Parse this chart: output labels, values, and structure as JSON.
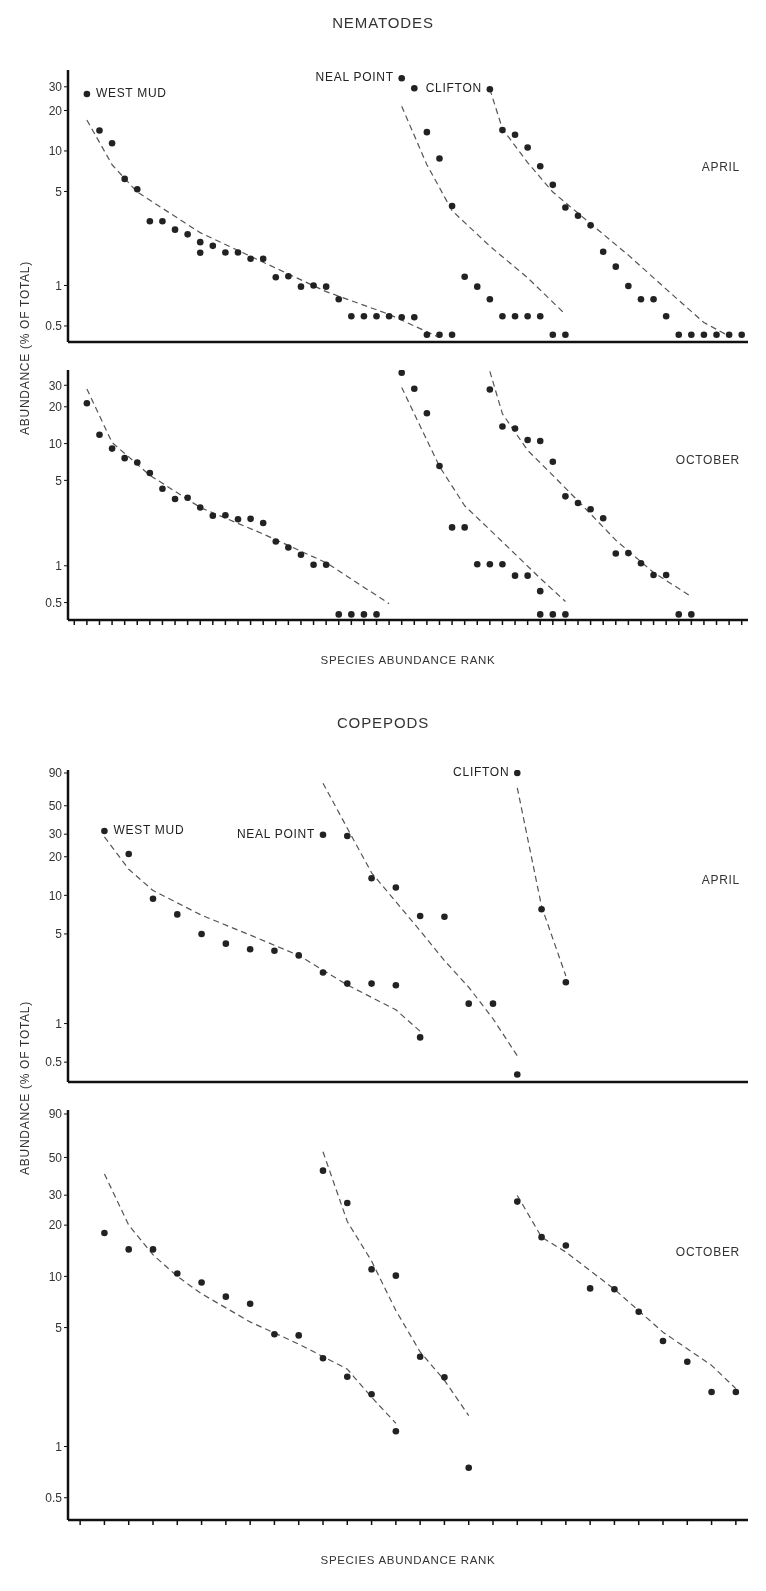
{
  "chart_data": [
    {
      "type": "scatter",
      "title": "NEMATODES",
      "ylabel": "ABUNDANCE (% OF TOTAL)",
      "annotations": [
        "APRIL"
      ],
      "log": true,
      "marker": "circle",
      "ylim": [
        0.38,
        40
      ],
      "yticks": [
        0.5,
        1,
        5,
        10,
        20,
        30
      ],
      "categories": [
        null,
        null,
        null,
        null,
        null,
        null,
        null,
        null,
        null,
        null,
        null,
        null,
        null,
        null,
        null,
        null,
        null,
        null,
        null,
        null,
        null,
        null,
        null,
        null,
        null,
        null,
        null,
        null,
        null,
        null,
        null,
        null,
        null,
        null,
        null,
        null,
        null,
        null,
        null,
        null,
        null,
        null,
        null,
        null,
        null,
        null,
        null,
        null,
        null,
        null,
        null,
        null,
        null,
        null
      ],
      "series": [
        {
          "name": "WEST MUD",
          "color": "#222222",
          "values": [
            null,
            26.5,
            14.2,
            11.4,
            6.2,
            5.2,
            3.0,
            3.0,
            2.6,
            2.4,
            2.1,
            1.97,
            1.76,
            1.76,
            1.58,
            1.58,
            1.15,
            1.17,
            0.98,
            1.0,
            0.98,
            0.79,
            0.59,
            0.59,
            0.59,
            0.59,
            0.58,
            0.58,
            0.43,
            0.43,
            0.43,
            null,
            null,
            null,
            null,
            null,
            null,
            null,
            null,
            null,
            null,
            null,
            null,
            null,
            null,
            null,
            null,
            null,
            null,
            null,
            null,
            null,
            null,
            null
          ]
        },
        {
          "color": "#222222",
          "values": [
            null,
            null,
            null,
            null,
            null,
            null,
            null,
            null,
            null,
            null,
            1.75,
            null,
            null,
            null,
            null,
            null,
            null,
            null,
            null,
            null,
            null,
            null,
            null,
            null,
            null,
            null,
            null,
            null,
            null,
            null,
            null,
            null,
            null,
            null,
            null,
            null,
            null,
            null,
            null,
            null,
            null,
            null,
            null,
            null,
            null,
            null,
            null,
            null,
            null,
            null,
            null,
            null,
            null,
            null
          ]
        },
        {
          "name": "NEAL POINT",
          "color": "#222222",
          "values": [
            null,
            null,
            null,
            null,
            null,
            null,
            null,
            null,
            null,
            null,
            null,
            null,
            null,
            null,
            null,
            null,
            null,
            null,
            null,
            null,
            null,
            null,
            null,
            null,
            null,
            null,
            34.7,
            29.3,
            13.8,
            8.8,
            3.9,
            1.16,
            0.98,
            0.79,
            0.59,
            0.59,
            0.59,
            0.59,
            0.43,
            0.43,
            null,
            null,
            null,
            null,
            null,
            null,
            null,
            null,
            null,
            null,
            null,
            null,
            null,
            null
          ]
        },
        {
          "name": "CLIFTON",
          "color": "#222222",
          "values": [
            null,
            null,
            null,
            null,
            null,
            null,
            null,
            null,
            null,
            null,
            null,
            null,
            null,
            null,
            null,
            null,
            null,
            null,
            null,
            null,
            null,
            null,
            null,
            null,
            null,
            null,
            null,
            null,
            null,
            null,
            null,
            null,
            null,
            28.8,
            14.3,
            13.2,
            10.6,
            7.7,
            5.6,
            3.8,
            3.3,
            2.8,
            1.78,
            1.38,
            0.99,
            0.79,
            0.79,
            0.59,
            0.43,
            0.43,
            0.43,
            0.43,
            0.43,
            0.43
          ]
        },
        {
          "type": "line",
          "marker": "none",
          "line_style": "dashed",
          "color": "#555555",
          "values": [
            null,
            17,
            null,
            7.9,
            null,
            4.95,
            null,
            null,
            null,
            null,
            2.47,
            null,
            null,
            null,
            null,
            1.49,
            null,
            null,
            null,
            null,
            0.9,
            null,
            null,
            null,
            null,
            0.61,
            null,
            null,
            null,
            0.41,
            null,
            null,
            null,
            null,
            null,
            null,
            null,
            null,
            null,
            null,
            null,
            null,
            null,
            null,
            null,
            null,
            null,
            null,
            null,
            null,
            null,
            null,
            null,
            null
          ]
        },
        {
          "type": "line",
          "marker": "none",
          "line_style": "dashed",
          "color": "#555555",
          "values": [
            null,
            null,
            null,
            null,
            null,
            null,
            null,
            null,
            null,
            null,
            null,
            null,
            null,
            null,
            null,
            null,
            null,
            null,
            null,
            null,
            null,
            null,
            null,
            null,
            null,
            null,
            21.5,
            null,
            7.9,
            null,
            3.6,
            null,
            null,
            1.96,
            null,
            null,
            1.14,
            null,
            null,
            0.61,
            null,
            null,
            null,
            null,
            null,
            null,
            null,
            null,
            null,
            null,
            null,
            null,
            null,
            null
          ]
        },
        {
          "type": "line",
          "marker": "none",
          "line_style": "dashed",
          "color": "#555555",
          "values": [
            null,
            null,
            null,
            null,
            null,
            null,
            null,
            null,
            null,
            null,
            null,
            null,
            null,
            null,
            null,
            null,
            null,
            null,
            null,
            null,
            null,
            null,
            null,
            null,
            null,
            null,
            null,
            null,
            null,
            null,
            null,
            null,
            null,
            28.8,
            14.6,
            null,
            8.2,
            null,
            4.95,
            null,
            null,
            2.88,
            null,
            null,
            1.68,
            null,
            null,
            0.94,
            null,
            null,
            0.53,
            null,
            0.42,
            null
          ]
        }
      ]
    },
    {
      "type": "scatter",
      "xlabel": "SPECIES ABUNDANCE RANK",
      "annotations": [
        "OCTOBER"
      ],
      "log": true,
      "marker": "circle",
      "ylim": [
        0.36,
        40
      ],
      "yticks": [
        0.5,
        1,
        5,
        10,
        20,
        30
      ],
      "categories": [
        null,
        null,
        null,
        null,
        null,
        null,
        null,
        null,
        null,
        null,
        null,
        null,
        null,
        null,
        null,
        null,
        null,
        null,
        null,
        null,
        null,
        null,
        null,
        null,
        null,
        null,
        null,
        null,
        null,
        null,
        null,
        null,
        null,
        null,
        null,
        null,
        null,
        null,
        null,
        null,
        null,
        null,
        null,
        null,
        null,
        null,
        null,
        null,
        null,
        null,
        null,
        null,
        null,
        null
      ],
      "series": [
        {
          "color": "#222222",
          "values": [
            null,
            21.4,
            11.8,
            9.1,
            7.6,
            7.0,
            5.75,
            4.27,
            3.52,
            3.6,
            3.0,
            2.57,
            2.59,
            2.4,
            2.42,
            2.24,
            1.58,
            1.41,
            1.23,
            1.02,
            1.02,
            0.4,
            0.4,
            0.4,
            0.4,
            null,
            null,
            null,
            null,
            null,
            null,
            null,
            null,
            null,
            null,
            null,
            null,
            null,
            null,
            null,
            null,
            null,
            null,
            null,
            null,
            null,
            null,
            null,
            null,
            null,
            null,
            null,
            null,
            null
          ]
        },
        {
          "color": "#222222",
          "values": [
            null,
            null,
            null,
            null,
            null,
            null,
            null,
            null,
            null,
            null,
            null,
            null,
            null,
            null,
            null,
            null,
            null,
            null,
            null,
            null,
            null,
            null,
            null,
            null,
            null,
            null,
            38,
            28.1,
            17.7,
            6.55,
            2.06,
            2.06,
            1.03,
            1.03,
            1.03,
            0.83,
            0.83,
            0.62,
            0.4,
            0.4,
            null,
            null,
            null,
            null,
            null,
            null,
            null,
            null,
            null,
            null,
            null,
            null,
            null,
            null
          ]
        },
        {
          "color": "#222222",
          "values": [
            null,
            null,
            null,
            null,
            null,
            null,
            null,
            null,
            null,
            null,
            null,
            null,
            null,
            null,
            null,
            null,
            null,
            null,
            null,
            null,
            null,
            null,
            null,
            null,
            null,
            null,
            null,
            null,
            null,
            null,
            null,
            null,
            null,
            null,
            null,
            null,
            null,
            0.4,
            null,
            null,
            null,
            null,
            null,
            null,
            null,
            null,
            null,
            null,
            null,
            null,
            null,
            null,
            null,
            null
          ]
        },
        {
          "color": "#222222",
          "values": [
            null,
            null,
            null,
            null,
            null,
            null,
            null,
            null,
            null,
            null,
            null,
            null,
            null,
            null,
            null,
            null,
            null,
            null,
            null,
            null,
            null,
            null,
            null,
            null,
            null,
            null,
            null,
            null,
            null,
            null,
            null,
            null,
            null,
            27.7,
            13.8,
            13.3,
            10.7,
            10.5,
            7.1,
            3.7,
            3.26,
            2.9,
            2.45,
            1.26,
            1.27,
            1.05,
            0.84,
            0.84,
            0.4,
            0.4,
            null,
            null,
            null,
            null
          ]
        },
        {
          "type": "line",
          "marker": "none",
          "line_style": "dashed",
          "color": "#555555",
          "values": [
            null,
            28,
            null,
            10.2,
            null,
            null,
            5.5,
            null,
            null,
            null,
            3.0,
            null,
            null,
            null,
            null,
            1.82,
            null,
            null,
            null,
            null,
            1.06,
            null,
            null,
            null,
            null,
            0.49,
            null,
            null,
            null,
            null,
            null,
            null,
            null,
            null,
            null,
            null,
            null,
            null,
            null,
            null,
            null,
            null,
            null,
            null,
            null,
            null,
            null,
            null,
            null,
            null,
            null,
            null,
            null,
            null
          ]
        },
        {
          "type": "line",
          "marker": "none",
          "line_style": "dashed",
          "color": "#555555",
          "values": [
            null,
            null,
            null,
            null,
            null,
            null,
            null,
            null,
            null,
            null,
            null,
            null,
            null,
            null,
            null,
            null,
            null,
            null,
            null,
            null,
            null,
            null,
            null,
            null,
            null,
            null,
            28.8,
            17.5,
            null,
            6.5,
            null,
            3.1,
            null,
            null,
            1.57,
            null,
            null,
            0.79,
            null,
            0.51,
            null,
            null,
            null,
            null,
            null,
            null,
            null,
            null,
            null,
            null,
            null,
            null,
            null,
            null
          ]
        },
        {
          "type": "line",
          "marker": "none",
          "line_style": "dashed",
          "color": "#555555",
          "values": [
            null,
            null,
            null,
            null,
            null,
            null,
            null,
            null,
            null,
            null,
            null,
            null,
            null,
            null,
            null,
            null,
            null,
            null,
            null,
            null,
            null,
            null,
            null,
            null,
            null,
            null,
            null,
            null,
            null,
            null,
            null,
            null,
            null,
            39,
            17.5,
            null,
            8.8,
            null,
            5.5,
            null,
            3.4,
            null,
            null,
            1.62,
            null,
            null,
            0.88,
            null,
            null,
            0.56,
            null,
            null,
            null,
            null
          ]
        }
      ]
    },
    {
      "type": "scatter",
      "title": "COPEPODS",
      "ylabel": "ABUNDANCE (% OF TOTAL)",
      "annotations": [
        "APRIL"
      ],
      "log": true,
      "marker": "circle",
      "ylim": [
        0.35,
        95
      ],
      "yticks": [
        0.5,
        1,
        5,
        10,
        20,
        30,
        50,
        90
      ],
      "categories": [
        null,
        null,
        null,
        null,
        null,
        null,
        null,
        null,
        null,
        null,
        null,
        null,
        null,
        null,
        null,
        null,
        null,
        null,
        null,
        null,
        null,
        null,
        null,
        null,
        null,
        null,
        null,
        null
      ],
      "series": [
        {
          "name": "WEST MUD",
          "color": "#222222",
          "values": [
            null,
            31.8,
            21,
            9.4,
            7.1,
            5.0,
            4.2,
            3.8,
            3.7,
            3.4,
            2.5,
            2.05,
            2.05,
            1.99,
            0.78,
            null,
            null,
            null,
            null,
            null,
            null,
            null,
            null,
            null,
            null,
            null,
            null,
            null
          ]
        },
        {
          "name": "NEAL POINT",
          "color": "#222222",
          "values": [
            null,
            null,
            null,
            null,
            null,
            null,
            null,
            null,
            null,
            null,
            29.7,
            29,
            13.6,
            11.5,
            6.9,
            6.8,
            1.43,
            1.43,
            0.4,
            null,
            null,
            null,
            null,
            null,
            null,
            null,
            null,
            null
          ]
        },
        {
          "name": "CLIFTON",
          "color": "#222222",
          "values": [
            null,
            null,
            null,
            null,
            null,
            null,
            null,
            null,
            null,
            null,
            null,
            null,
            null,
            null,
            null,
            null,
            null,
            null,
            90,
            7.8,
            2.1,
            null,
            null,
            null,
            null,
            null,
            null,
            null
          ]
        },
        {
          "type": "line",
          "marker": "none",
          "line_style": "dashed",
          "color": "#555555",
          "values": [
            null,
            28.6,
            16,
            10.9,
            null,
            7.0,
            null,
            4.9,
            null,
            3.4,
            null,
            2.0,
            null,
            1.28,
            0.87,
            null,
            null,
            null,
            null,
            null,
            null,
            null,
            null,
            null,
            null,
            null,
            null,
            null
          ]
        },
        {
          "type": "line",
          "marker": "none",
          "line_style": "dashed",
          "color": "#555555",
          "values": [
            null,
            null,
            null,
            null,
            null,
            null,
            null,
            null,
            null,
            null,
            75,
            33.4,
            15,
            null,
            5.3,
            3.1,
            1.92,
            1.09,
            0.56,
            null,
            null,
            null,
            null,
            null,
            null,
            null,
            null,
            null
          ]
        },
        {
          "type": "line",
          "marker": "none",
          "line_style": "dashed",
          "color": "#555555",
          "values": [
            null,
            null,
            null,
            null,
            null,
            null,
            null,
            null,
            null,
            null,
            null,
            null,
            null,
            null,
            null,
            null,
            null,
            null,
            69,
            8.2,
            2.35,
            null,
            null,
            null,
            null,
            null,
            null,
            null
          ]
        }
      ]
    },
    {
      "type": "scatter",
      "xlabel": "SPECIES ABUNDANCE RANK",
      "annotations": [
        "OCTOBER"
      ],
      "log": true,
      "marker": "circle",
      "ylim": [
        0.37,
        95
      ],
      "yticks": [
        0.5,
        1,
        5,
        10,
        20,
        30,
        50,
        90
      ],
      "categories": [
        null,
        null,
        null,
        null,
        null,
        null,
        null,
        null,
        null,
        null,
        null,
        null,
        null,
        null,
        null,
        null,
        null,
        null,
        null,
        null,
        null,
        null,
        null,
        null,
        null,
        null,
        null,
        null
      ],
      "series": [
        {
          "color": "#222222",
          "values": [
            null,
            18,
            14.4,
            14.4,
            10.4,
            9.2,
            7.6,
            6.9,
            4.57,
            4.5,
            3.3,
            2.57,
            2.03,
            1.23,
            null,
            null,
            null,
            null,
            null,
            null,
            null,
            null,
            null,
            null,
            null,
            null,
            null,
            null
          ]
        },
        {
          "color": "#222222",
          "values": [
            null,
            null,
            null,
            null,
            null,
            null,
            null,
            null,
            null,
            null,
            41.8,
            27,
            11,
            10.1,
            3.37,
            2.55,
            0.75,
            null,
            null,
            null,
            null,
            null,
            null,
            null,
            null,
            null,
            null,
            null
          ]
        },
        {
          "color": "#222222",
          "values": [
            null,
            null,
            null,
            null,
            null,
            null,
            null,
            null,
            null,
            null,
            null,
            null,
            null,
            null,
            null,
            null,
            null,
            null,
            27.5,
            17,
            15.2,
            8.5,
            8.4,
            6.2,
            4.17,
            3.15,
            2.09,
            2.09
          ]
        },
        {
          "type": "line",
          "marker": "none",
          "line_style": "dashed",
          "color": "#555555",
          "values": [
            null,
            40,
            20,
            13.4,
            10,
            7.9,
            null,
            5.4,
            null,
            4.0,
            null,
            2.85,
            1.95,
            1.37,
            null,
            null,
            null,
            null,
            null,
            null,
            null,
            null,
            null,
            null,
            null,
            null,
            null,
            null
          ]
        },
        {
          "type": "line",
          "marker": "none",
          "line_style": "dashed",
          "color": "#555555",
          "values": [
            null,
            null,
            null,
            null,
            null,
            null,
            null,
            null,
            null,
            null,
            54,
            21,
            12.3,
            6.3,
            3.6,
            2.45,
            1.52,
            null,
            null,
            null,
            null,
            null,
            null,
            null,
            null,
            null,
            null,
            null
          ]
        },
        {
          "type": "line",
          "marker": "none",
          "line_style": "dashed",
          "color": "#555555",
          "values": [
            null,
            null,
            null,
            null,
            null,
            null,
            null,
            null,
            null,
            null,
            null,
            null,
            null,
            null,
            null,
            null,
            null,
            null,
            29.9,
            17,
            13.9,
            null,
            8.4,
            null,
            4.7,
            null,
            3.0,
            2.19
          ]
        }
      ]
    }
  ]
}
